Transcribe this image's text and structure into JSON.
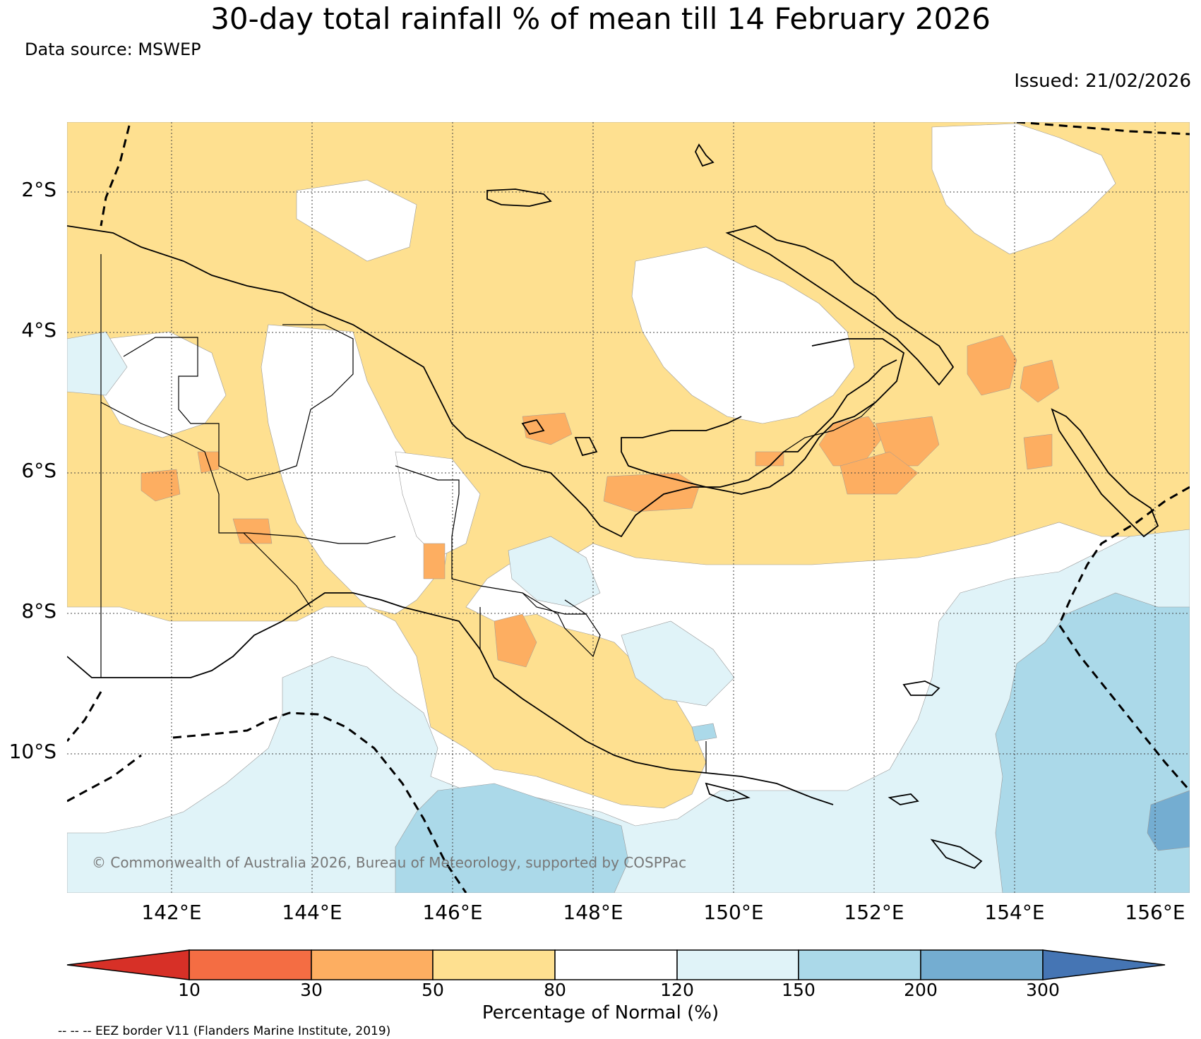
{
  "title": "30-day total rainfall % of mean till 14 February 2026",
  "data_source": "Data source: MSWEP",
  "issued": "Issued: 21/02/2026",
  "credit": "© Commonwealth of Australia 2026, Bureau of Meteorology, supported by COSPPac",
  "eez_note": "-- -- -- EEZ border V11 (Flanders Marine Institute, 2019)",
  "map": {
    "lat_labels": [
      "2°S",
      "4°S",
      "6°S",
      "8°S",
      "10°S"
    ],
    "lon_labels": [
      "142°E",
      "144°E",
      "146°E",
      "148°E",
      "150°E",
      "152°E",
      "154°E",
      "156°E"
    ],
    "lon_range": [
      140.5,
      156.5
    ],
    "lat_range": [
      -11.9,
      -0.9
    ]
  },
  "colorbar": {
    "title": "Percentage of Normal (%)",
    "tick_labels": [
      "10",
      "30",
      "50",
      "80",
      "120",
      "150",
      "200",
      "300"
    ],
    "colors": [
      "#d73027",
      "#f46d43",
      "#fdae61",
      "#fee090",
      "#ffffff",
      "#e0f3f8",
      "#abd9e9",
      "#74add1",
      "#4575b4"
    ]
  }
}
